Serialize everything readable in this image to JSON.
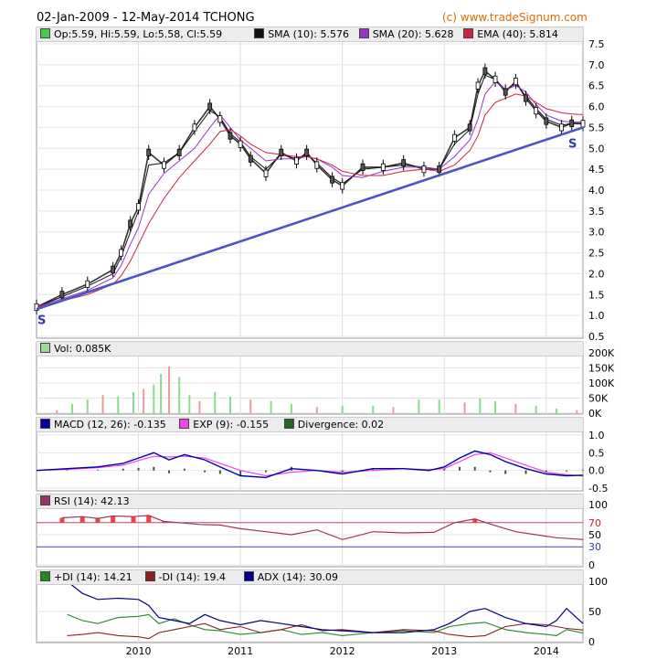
{
  "header": {
    "title": "02-Jan-2009 - 12-May-2014 TCHONG",
    "credit": "(c) www.tradeSignum.com"
  },
  "price_legend": [
    {
      "label": "Op:5.59, Hi:5.59, Lo:5.58, Cl:5.59",
      "color": "#44cc44"
    },
    {
      "label": "SMA (10): 5.576",
      "color": "#111111"
    },
    {
      "label": "SMA (20): 5.628",
      "color": "#9933cc"
    },
    {
      "label": "EMA (40): 5.814",
      "color": "#cc2244"
    }
  ],
  "volume_legend": [
    {
      "label": "Vol: 0.085K",
      "color": "#99dd99"
    }
  ],
  "macd_legend": [
    {
      "label": "MACD (12, 26): -0.135",
      "color": "#0000aa"
    },
    {
      "label": "EXP (9): -0.155",
      "color": "#ee44ee"
    },
    {
      "label": "Divergence: 0.02",
      "color": "#226622"
    }
  ],
  "rsi_legend": [
    {
      "label": "RSI (14): 42.13",
      "color": "#993366"
    }
  ],
  "dmi_legend": [
    {
      "label": "+DI (14): 14.21",
      "color": "#228822"
    },
    {
      "label": "-DI (14): 19.4",
      "color": "#882222"
    },
    {
      "label": "ADX (14): 30.09",
      "color": "#000088"
    }
  ],
  "support_labels": [
    "S",
    "S"
  ],
  "x_axis": {
    "ticks": [
      "2010",
      "2011",
      "2012",
      "2013",
      "2014"
    ]
  },
  "chart_data": [
    {
      "type": "line",
      "panel": "price",
      "x": [
        2009.0,
        2009.25,
        2009.5,
        2009.75,
        2009.83,
        2009.92,
        2010.0,
        2010.1,
        2010.25,
        2010.4,
        2010.55,
        2010.7,
        2010.8,
        2010.9,
        2011.0,
        2011.1,
        2011.25,
        2011.4,
        2011.55,
        2011.65,
        2011.75,
        2011.9,
        2012.0,
        2012.2,
        2012.4,
        2012.6,
        2012.8,
        2012.95,
        2013.1,
        2013.25,
        2013.33,
        2013.4,
        2013.5,
        2013.6,
        2013.7,
        2013.8,
        2013.9,
        2014.0,
        2014.15,
        2014.25,
        2014.36
      ],
      "series": [
        {
          "name": "Close",
          "values": [
            1.2,
            1.5,
            1.75,
            2.1,
            2.5,
            3.2,
            3.6,
            4.9,
            4.6,
            4.9,
            5.5,
            6.0,
            5.7,
            5.3,
            5.1,
            4.75,
            4.4,
            4.9,
            4.7,
            4.9,
            4.6,
            4.25,
            4.1,
            4.55,
            4.55,
            4.65,
            4.5,
            4.5,
            5.25,
            5.5,
            6.5,
            6.85,
            6.65,
            6.35,
            6.6,
            6.2,
            5.9,
            5.65,
            5.5,
            5.6,
            5.59
          ]
        },
        {
          "name": "SMA (10)",
          "values": [
            1.2,
            1.45,
            1.7,
            2.0,
            2.4,
            3.0,
            3.5,
            4.6,
            4.65,
            4.9,
            5.4,
            5.9,
            5.75,
            5.35,
            5.15,
            4.8,
            4.5,
            4.85,
            4.75,
            4.85,
            4.65,
            4.3,
            4.15,
            4.5,
            4.55,
            4.6,
            4.55,
            4.5,
            5.1,
            5.45,
            6.3,
            6.75,
            6.65,
            6.4,
            6.55,
            6.25,
            5.95,
            5.7,
            5.55,
            5.6,
            5.58
          ]
        },
        {
          "name": "SMA (20)",
          "values": [
            1.2,
            1.4,
            1.6,
            1.9,
            2.2,
            2.7,
            3.1,
            3.9,
            4.4,
            4.7,
            5.0,
            5.5,
            5.8,
            5.5,
            5.2,
            5.0,
            4.7,
            4.75,
            4.75,
            4.8,
            4.75,
            4.55,
            4.35,
            4.3,
            4.45,
            4.55,
            4.55,
            4.5,
            4.8,
            5.2,
            5.7,
            6.3,
            6.6,
            6.4,
            6.5,
            6.35,
            6.05,
            5.8,
            5.65,
            5.63,
            5.63
          ]
        },
        {
          "name": "EMA (40)",
          "values": [
            1.2,
            1.35,
            1.5,
            1.75,
            1.95,
            2.3,
            2.7,
            3.2,
            3.8,
            4.3,
            4.7,
            5.1,
            5.4,
            5.45,
            5.3,
            5.1,
            4.9,
            4.85,
            4.8,
            4.8,
            4.75,
            4.6,
            4.45,
            4.35,
            4.35,
            4.45,
            4.5,
            4.45,
            4.6,
            4.95,
            5.3,
            5.8,
            6.1,
            6.2,
            6.3,
            6.25,
            6.1,
            5.95,
            5.85,
            5.82,
            5.81
          ]
        },
        {
          "name": "Support",
          "values": [
            1.15,
            null,
            null,
            null,
            null,
            null,
            null,
            null,
            null,
            null,
            null,
            null,
            null,
            null,
            null,
            null,
            null,
            null,
            null,
            null,
            null,
            null,
            null,
            null,
            null,
            null,
            null,
            null,
            null,
            null,
            null,
            null,
            null,
            null,
            null,
            null,
            null,
            null,
            null,
            null,
            5.5
          ]
        }
      ],
      "ylim": [
        0.5,
        7.5
      ],
      "y_ticks": [
        0.5,
        1.0,
        1.5,
        2.0,
        2.5,
        3.0,
        3.5,
        4.0,
        4.5,
        5.0,
        5.5,
        6.0,
        6.5,
        7.0,
        7.5
      ],
      "grid": true
    },
    {
      "type": "bar",
      "panel": "volume",
      "x": [
        2009.2,
        2009.35,
        2009.5,
        2009.65,
        2009.8,
        2009.95,
        2010.05,
        2010.15,
        2010.22,
        2010.3,
        2010.4,
        2010.5,
        2010.6,
        2010.75,
        2010.9,
        2011.1,
        2011.3,
        2011.5,
        2011.75,
        2012.0,
        2012.3,
        2012.5,
        2012.75,
        2012.95,
        2013.2,
        2013.35,
        2013.5,
        2013.7,
        2013.9,
        2014.1,
        2014.3
      ],
      "values": [
        10,
        30,
        45,
        60,
        55,
        70,
        80,
        95,
        130,
        155,
        120,
        60,
        40,
        70,
        55,
        45,
        40,
        30,
        20,
        25,
        25,
        20,
        45,
        45,
        35,
        50,
        40,
        30,
        25,
        15,
        10
      ],
      "ylim": [
        0,
        200
      ],
      "y_ticks": [
        "0K",
        "50K",
        "100K",
        "150K",
        "200K"
      ]
    },
    {
      "type": "line",
      "panel": "macd",
      "x": [
        2009.0,
        2009.3,
        2009.6,
        2009.85,
        2010.0,
        2010.15,
        2010.3,
        2010.45,
        2010.65,
        2010.8,
        2011.0,
        2011.25,
        2011.5,
        2011.75,
        2012.0,
        2012.3,
        2012.6,
        2012.85,
        2013.0,
        2013.15,
        2013.3,
        2013.45,
        2013.6,
        2013.8,
        2014.0,
        2014.2,
        2014.36
      ],
      "series": [
        {
          "name": "MACD (12, 26)",
          "values": [
            0.0,
            0.05,
            0.1,
            0.2,
            0.35,
            0.5,
            0.3,
            0.45,
            0.3,
            0.1,
            -0.15,
            -0.2,
            0.05,
            0.0,
            -0.1,
            0.05,
            0.05,
            0.0,
            0.1,
            0.35,
            0.55,
            0.45,
            0.25,
            0.05,
            -0.1,
            -0.15,
            -0.135
          ]
        },
        {
          "name": "EXP (9)",
          "values": [
            0.0,
            0.03,
            0.08,
            0.15,
            0.28,
            0.4,
            0.38,
            0.4,
            0.35,
            0.2,
            0.0,
            -0.15,
            -0.05,
            0.0,
            -0.05,
            0.0,
            0.05,
            0.02,
            0.05,
            0.25,
            0.45,
            0.5,
            0.35,
            0.15,
            -0.05,
            -0.12,
            -0.155
          ]
        },
        {
          "name": "Divergence",
          "values": [
            0.0,
            0.02,
            0.02,
            0.05,
            0.07,
            0.1,
            -0.08,
            0.05,
            -0.05,
            -0.1,
            -0.15,
            -0.05,
            0.1,
            0.0,
            -0.05,
            0.05,
            0.0,
            -0.02,
            0.05,
            0.1,
            0.1,
            -0.05,
            -0.1,
            -0.1,
            -0.05,
            -0.03,
            0.02
          ]
        }
      ],
      "ylim": [
        -0.5,
        1.0
      ],
      "y_ticks": [
        -0.5,
        0.0,
        0.5,
        1.0
      ]
    },
    {
      "type": "line",
      "panel": "rsi",
      "x": [
        2009.25,
        2009.45,
        2009.6,
        2009.75,
        2009.95,
        2010.1,
        2010.25,
        2010.4,
        2010.6,
        2010.8,
        2011.0,
        2011.25,
        2011.5,
        2011.75,
        2012.0,
        2012.3,
        2012.6,
        2012.9,
        2013.1,
        2013.3,
        2013.5,
        2013.7,
        2013.9,
        2014.1,
        2014.36
      ],
      "series": [
        {
          "name": "RSI (14)",
          "values": [
            78,
            80,
            77,
            81,
            80,
            82,
            72,
            70,
            67,
            66,
            60,
            55,
            50,
            58,
            42,
            55,
            53,
            54,
            70,
            76,
            65,
            55,
            50,
            45,
            42.13
          ]
        }
      ],
      "ylim": [
        0,
        100
      ],
      "y_ticks": [
        0,
        30,
        50,
        70,
        100
      ]
    },
    {
      "type": "line",
      "panel": "dmi",
      "x": [
        2009.3,
        2009.45,
        2009.6,
        2009.8,
        2010.0,
        2010.1,
        2010.2,
        2010.35,
        2010.5,
        2010.65,
        2010.8,
        2011.0,
        2011.2,
        2011.4,
        2011.6,
        2011.8,
        2012.0,
        2012.3,
        2012.6,
        2012.9,
        2013.05,
        2013.25,
        2013.4,
        2013.6,
        2013.8,
        2014.0,
        2014.1,
        2014.2,
        2014.36
      ],
      "series": [
        {
          "name": "+DI (14)",
          "values": [
            45,
            35,
            30,
            40,
            42,
            45,
            30,
            38,
            28,
            20,
            18,
            12,
            15,
            20,
            12,
            15,
            10,
            15,
            18,
            15,
            25,
            30,
            32,
            20,
            15,
            12,
            10,
            20,
            14.21
          ]
        },
        {
          "name": "-DI (14)",
          "values": [
            10,
            12,
            15,
            10,
            8,
            5,
            15,
            20,
            25,
            30,
            20,
            25,
            15,
            20,
            28,
            18,
            20,
            15,
            20,
            18,
            12,
            8,
            10,
            25,
            30,
            28,
            25,
            22,
            19.4
          ]
        },
        {
          "name": "ADX (14)",
          "values": [
            100,
            80,
            70,
            72,
            70,
            60,
            40,
            35,
            30,
            45,
            35,
            28,
            35,
            30,
            25,
            20,
            18,
            15,
            15,
            20,
            30,
            50,
            55,
            40,
            30,
            25,
            35,
            55,
            30.09
          ]
        }
      ],
      "ylim": [
        0,
        100
      ],
      "y_ticks": [
        0,
        50,
        100
      ]
    }
  ]
}
